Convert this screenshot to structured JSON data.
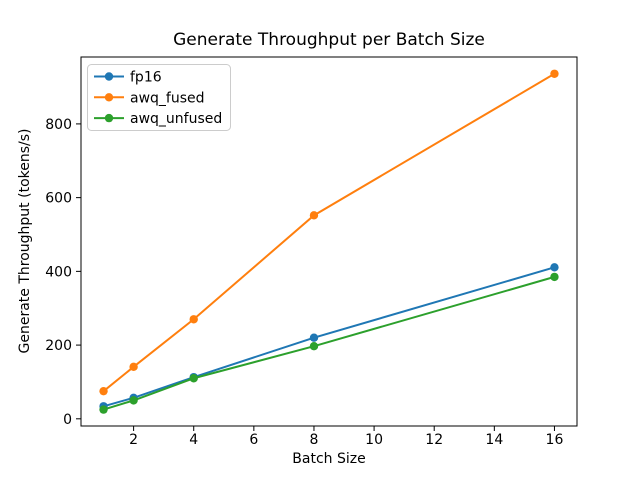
{
  "figure": {
    "background": "#ffffff",
    "axis_color": "#000000",
    "text_color": "#000000",
    "legend_border_color": "#cccccc"
  },
  "chart_data": {
    "type": "line",
    "title": "Generate Throughput per Batch Size",
    "xlabel": "Batch Size",
    "ylabel": "Generate Throughput (tokens/s)",
    "x": [
      1,
      2,
      4,
      8,
      16
    ],
    "series": [
      {
        "name": "fp16",
        "color": "#1f77b4",
        "values": [
          34,
          57,
          113,
          220,
          411
        ]
      },
      {
        "name": "awq_fused",
        "color": "#ff7f0e",
        "values": [
          75,
          141,
          270,
          552,
          936
        ]
      },
      {
        "name": "awq_unfused",
        "color": "#2ca02c",
        "values": [
          25,
          50,
          110,
          197,
          385
        ]
      }
    ],
    "x_ticks": [
      2,
      4,
      6,
      8,
      10,
      12,
      14,
      16
    ],
    "y_ticks": [
      0,
      200,
      400,
      600,
      800
    ],
    "xlim": [
      0.25,
      16.75
    ],
    "ylim": [
      -19.5,
      981.5
    ],
    "grid": false,
    "marker": "circle",
    "legend_position": "upper left"
  }
}
